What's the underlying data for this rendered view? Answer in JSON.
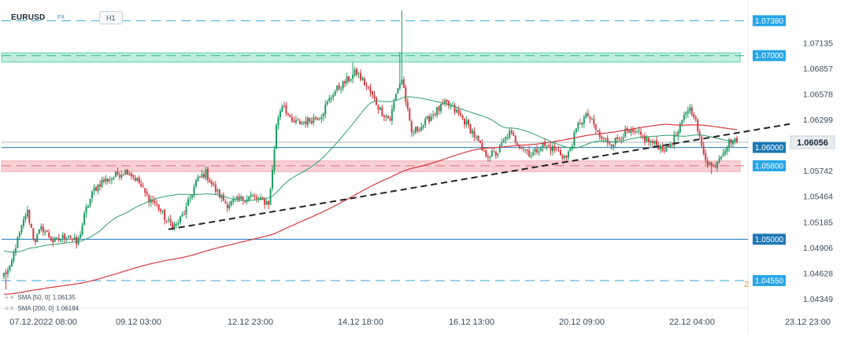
{
  "header": {
    "symbol": "EURUSD",
    "market": "FX",
    "timeframe": "H1"
  },
  "legend": [
    {
      "label": "SMA [50, 0]",
      "value": "1.06135",
      "color": "#2e9e6b"
    },
    {
      "label": "SMA [200, 0]",
      "value": "1.06184",
      "color": "#d9383f"
    }
  ],
  "last_price": {
    "label": "1.06056",
    "value": 1.06056
  },
  "bottom_marker": "2",
  "colors": {
    "bull": "#1e9b62",
    "bear": "#d9383f",
    "sma50": "#2e9e6b",
    "sma200": "#d9383f",
    "trend": "#222222",
    "level_blue": "#1e78b4",
    "level_dash": "#3aa5d8",
    "zone_green": "#bfeee0",
    "zone_red": "#f8d0d4"
  },
  "chart_data": {
    "type": "candlestick",
    "ylim": [
      1.0425,
      1.0752
    ],
    "y_ticks": [
      1.07135,
      1.06857,
      1.06578,
      1.06299,
      1.05742,
      1.05464,
      1.05185,
      1.04906,
      1.04628,
      1.04349
    ],
    "x_ticks": [
      "07.12.2022 08:00",
      "09.12 03:00",
      "12.12 23:00",
      "14.12 18:00",
      "16.12 13:00",
      "20.12 09:00",
      "22.12 04:00",
      "23.12 23:00"
    ],
    "levels": [
      {
        "value": 1.0738,
        "label": "1.07380",
        "style": "dashed",
        "color": "#3aa5d8"
      },
      {
        "value": 1.07,
        "label": "1.07000",
        "style": "zone",
        "color": "#2fb58a"
      },
      {
        "value": 1.06,
        "label": "1.06000",
        "style": "solid",
        "color": "#1e78b4"
      },
      {
        "value": 1.058,
        "label": "1.05800",
        "style": "zone",
        "color": "#e0707c"
      },
      {
        "value": 1.05,
        "label": "1.05000",
        "style": "solid",
        "color": "#1e78b4"
      },
      {
        "value": 1.0455,
        "label": "1.04550",
        "style": "dashed",
        "color": "#3aa5d8"
      }
    ],
    "zones": [
      {
        "from": 1.0693,
        "to": 1.0703,
        "color": "#bfeee0",
        "border": "#5fcfa8"
      },
      {
        "from": 1.05737,
        "to": 1.05853,
        "color": "#f8d0d4",
        "border": "#eeaab2"
      }
    ],
    "trendline": {
      "from": [
        0.233,
        1.05108
      ],
      "to": [
        1.0,
        1.06255
      ]
    },
    "price_anchors": [
      [
        0,
        1.0462
      ],
      [
        0.8,
        1.0467
      ],
      [
        1.5,
        1.0492
      ],
      [
        2.2,
        1.0509
      ],
      [
        3.0,
        1.0532
      ],
      [
        4.0,
        1.0498
      ],
      [
        5.0,
        1.0513
      ],
      [
        6.5,
        1.0497
      ],
      [
        8.5,
        1.0505
      ],
      [
        9.6,
        1.0494
      ],
      [
        10.8,
        1.0533
      ],
      [
        11.8,
        1.0554
      ],
      [
        12.8,
        1.0563
      ],
      [
        14.0,
        1.0566
      ],
      [
        15.2,
        1.0572
      ],
      [
        16.2,
        1.0575
      ],
      [
        17.6,
        1.0563
      ],
      [
        18.6,
        1.0548
      ],
      [
        20.0,
        1.0538
      ],
      [
        21.4,
        1.0519
      ],
      [
        22.6,
        1.0515
      ],
      [
        23.8,
        1.0531
      ],
      [
        25.2,
        1.0563
      ],
      [
        26.4,
        1.0573
      ],
      [
        27.6,
        1.0555
      ],
      [
        29.2,
        1.0538
      ],
      [
        31.0,
        1.0543
      ],
      [
        32.4,
        1.0547
      ],
      [
        33.6,
        1.0542
      ],
      [
        34.8,
        1.054
      ],
      [
        35.8,
        1.063
      ],
      [
        36.6,
        1.065
      ],
      [
        37.6,
        1.0627
      ],
      [
        38.8,
        1.0627
      ],
      [
        40.2,
        1.063
      ],
      [
        41.6,
        1.0636
      ],
      [
        43.2,
        1.066
      ],
      [
        44.6,
        1.067
      ],
      [
        46.2,
        1.0682
      ],
      [
        47.6,
        1.0666
      ],
      [
        49.4,
        1.064
      ],
      [
        50.6,
        1.063
      ],
      [
        51.6,
        1.0665
      ],
      [
        52.2,
        1.0675
      ],
      [
        53.4,
        1.0615
      ],
      [
        55.0,
        1.0625
      ],
      [
        56.4,
        1.0638
      ],
      [
        58.0,
        1.0648
      ],
      [
        59.8,
        1.0635
      ],
      [
        61.4,
        1.0617
      ],
      [
        63.0,
        1.0592
      ],
      [
        64.6,
        1.0593
      ],
      [
        66.2,
        1.0616
      ],
      [
        67.6,
        1.0603
      ],
      [
        69.2,
        1.0592
      ],
      [
        70.6,
        1.0603
      ],
      [
        72.2,
        1.0598
      ],
      [
        73.8,
        1.0588
      ],
      [
        75.4,
        1.0627
      ],
      [
        76.6,
        1.0635
      ],
      [
        78.2,
        1.061
      ],
      [
        79.8,
        1.0605
      ],
      [
        81.4,
        1.0616
      ],
      [
        83.2,
        1.0614
      ],
      [
        85.0,
        1.0605
      ],
      [
        86.8,
        1.0598
      ],
      [
        88.4,
        1.0616
      ],
      [
        89.6,
        1.0643
      ],
      [
        90.4,
        1.0639
      ],
      [
        91.4,
        1.0602
      ],
      [
        92.2,
        1.0585
      ],
      [
        93.0,
        1.0578
      ],
      [
        93.8,
        1.0591
      ],
      [
        94.6,
        1.06
      ],
      [
        95.3,
        1.0608
      ],
      [
        96.1,
        1.06056
      ]
    ]
  }
}
